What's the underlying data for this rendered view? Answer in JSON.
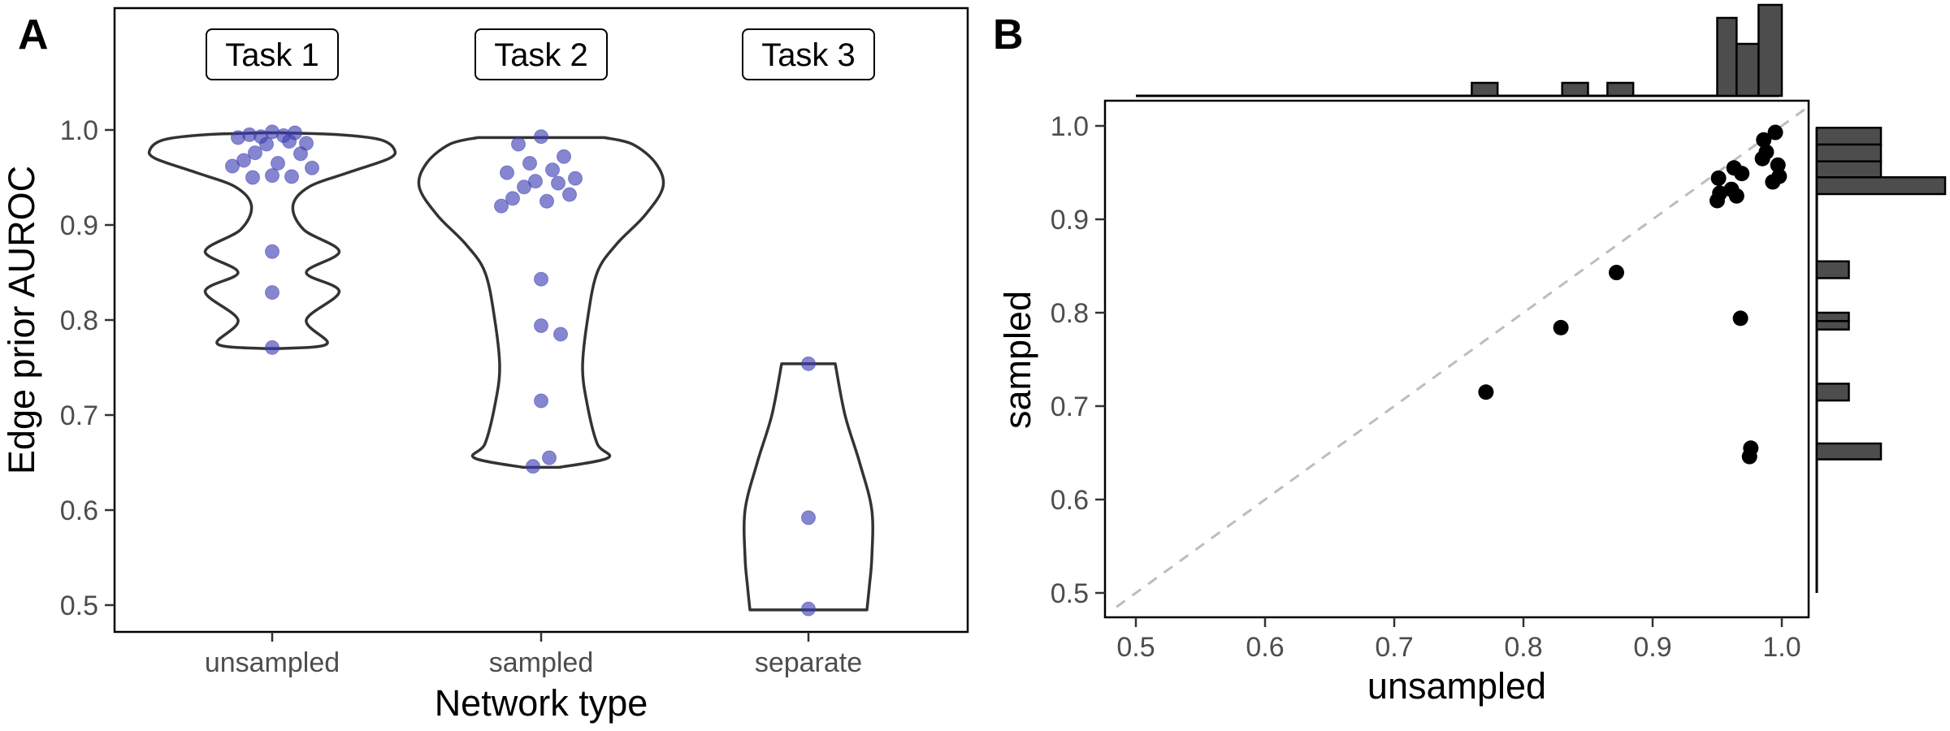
{
  "figure": {
    "panel_a_letter": "A",
    "panel_b_letter": "B"
  },
  "chart_data": [
    {
      "panel": "A",
      "type": "violin",
      "xlabel": "Network type",
      "ylabel": "Edge prior AUROC",
      "ylim": [
        0.48,
        1.13
      ],
      "yticks": [
        0.5,
        0.6,
        0.7,
        0.8,
        0.9,
        1.0
      ],
      "ytick_labels": [
        "0.5",
        "0.6",
        "0.7",
        "0.8",
        "0.9",
        "1.0"
      ],
      "categories": [
        "unsampled",
        "sampled",
        "separate"
      ],
      "task_labels": [
        "Task 1",
        "Task 2",
        "Task 3"
      ],
      "point_color": "#3b3bb3",
      "groups": [
        {
          "category": "unsampled",
          "task": "Task 1",
          "points": [
            0.998,
            0.995,
            0.997,
            0.993,
            0.994,
            0.992,
            0.986,
            0.985,
            0.988,
            0.976,
            0.975,
            0.968,
            0.965,
            0.962,
            0.96,
            0.952,
            0.951,
            0.95,
            0.872,
            0.829,
            0.771
          ],
          "violin_profile": [
            [
              0.77,
              0.06
            ],
            [
              0.775,
              0.45
            ],
            [
              0.8,
              0.28
            ],
            [
              0.83,
              0.55
            ],
            [
              0.85,
              0.28
            ],
            [
              0.872,
              0.55
            ],
            [
              0.895,
              0.26
            ],
            [
              0.92,
              0.17
            ],
            [
              0.94,
              0.3
            ],
            [
              0.955,
              0.62
            ],
            [
              0.97,
              0.96
            ],
            [
              0.98,
              1.0
            ],
            [
              0.99,
              0.88
            ],
            [
              0.995,
              0.55
            ],
            [
              0.997,
              0.07
            ]
          ]
        },
        {
          "category": "sampled",
          "task": "Task 2",
          "points": [
            0.993,
            0.985,
            0.972,
            0.965,
            0.958,
            0.955,
            0.949,
            0.946,
            0.944,
            0.94,
            0.932,
            0.928,
            0.925,
            0.92,
            0.843,
            0.794,
            0.785,
            0.715,
            0.655,
            0.646
          ],
          "violin_profile": [
            [
              0.645,
              0.15
            ],
            [
              0.655,
              0.55
            ],
            [
              0.67,
              0.46
            ],
            [
              0.71,
              0.38
            ],
            [
              0.75,
              0.34
            ],
            [
              0.8,
              0.38
            ],
            [
              0.85,
              0.46
            ],
            [
              0.88,
              0.62
            ],
            [
              0.91,
              0.85
            ],
            [
              0.94,
              1.0
            ],
            [
              0.965,
              0.94
            ],
            [
              0.985,
              0.75
            ],
            [
              0.992,
              0.52
            ]
          ]
        },
        {
          "category": "separate",
          "task": "Task 3",
          "points": [
            0.754,
            0.592,
            0.496
          ],
          "violin_profile": [
            [
              0.495,
              0.48
            ],
            [
              0.52,
              0.5
            ],
            [
              0.55,
              0.52
            ],
            [
              0.6,
              0.52
            ],
            [
              0.65,
              0.42
            ],
            [
              0.7,
              0.3
            ],
            [
              0.754,
              0.22
            ]
          ]
        }
      ]
    },
    {
      "panel": "B",
      "type": "scatter",
      "xlabel": "unsampled",
      "ylabel": "sampled",
      "xlim": [
        0.475,
        1.025
      ],
      "ylim": [
        0.475,
        1.025
      ],
      "xticks": [
        0.5,
        0.6,
        0.7,
        0.8,
        0.9,
        1.0
      ],
      "xtick_labels": [
        "0.5",
        "0.6",
        "0.7",
        "0.8",
        "0.9",
        "1.0"
      ],
      "yticks": [
        0.5,
        0.6,
        0.7,
        0.8,
        0.9,
        1.0
      ],
      "ytick_labels": [
        "0.5",
        "0.6",
        "0.7",
        "0.8",
        "0.9",
        "1.0"
      ],
      "reference_line": "y = x (dashed, grey)",
      "point_color": "#000000",
      "points": [
        {
          "x": 0.995,
          "y": 0.993
        },
        {
          "x": 0.986,
          "y": 0.985
        },
        {
          "x": 0.988,
          "y": 0.972
        },
        {
          "x": 0.985,
          "y": 0.965
        },
        {
          "x": 0.997,
          "y": 0.958
        },
        {
          "x": 0.963,
          "y": 0.955
        },
        {
          "x": 0.969,
          "y": 0.949
        },
        {
          "x": 0.998,
          "y": 0.946
        },
        {
          "x": 0.951,
          "y": 0.944
        },
        {
          "x": 0.993,
          "y": 0.94
        },
        {
          "x": 0.961,
          "y": 0.932
        },
        {
          "x": 0.952,
          "y": 0.928
        },
        {
          "x": 0.965,
          "y": 0.925
        },
        {
          "x": 0.95,
          "y": 0.92
        },
        {
          "x": 0.872,
          "y": 0.843
        },
        {
          "x": 0.968,
          "y": 0.794
        },
        {
          "x": 0.829,
          "y": 0.784
        },
        {
          "x": 0.771,
          "y": 0.715
        },
        {
          "x": 0.976,
          "y": 0.655
        },
        {
          "x": 0.975,
          "y": 0.646
        }
      ],
      "marginal_x_histogram": {
        "bar_color": "#4d4d4d",
        "bins": [
          {
            "from": 0.76,
            "to": 0.78,
            "count": 1
          },
          {
            "from": 0.83,
            "to": 0.85,
            "count": 1
          },
          {
            "from": 0.865,
            "to": 0.885,
            "count": 1
          },
          {
            "from": 0.95,
            "to": 0.965,
            "count": 6
          },
          {
            "from": 0.965,
            "to": 0.982,
            "count": 4
          },
          {
            "from": 0.982,
            "to": 1.0,
            "count": 7
          }
        ],
        "max_count": 7
      },
      "marginal_y_histogram": {
        "bar_color": "#4d4d4d",
        "bins": [
          {
            "from": 0.98,
            "to": 0.998,
            "count": 2
          },
          {
            "from": 0.962,
            "to": 0.98,
            "count": 2
          },
          {
            "from": 0.945,
            "to": 0.962,
            "count": 2
          },
          {
            "from": 0.927,
            "to": 0.945,
            "count": 4
          },
          {
            "from": 0.837,
            "to": 0.855,
            "count": 1
          },
          {
            "from": 0.791,
            "to": 0.8,
            "count": 1
          },
          {
            "from": 0.782,
            "to": 0.791,
            "count": 1
          },
          {
            "from": 0.706,
            "to": 0.724,
            "count": 1
          },
          {
            "from": 0.643,
            "to": 0.66,
            "count": 2
          }
        ],
        "max_count": 4
      }
    }
  ]
}
